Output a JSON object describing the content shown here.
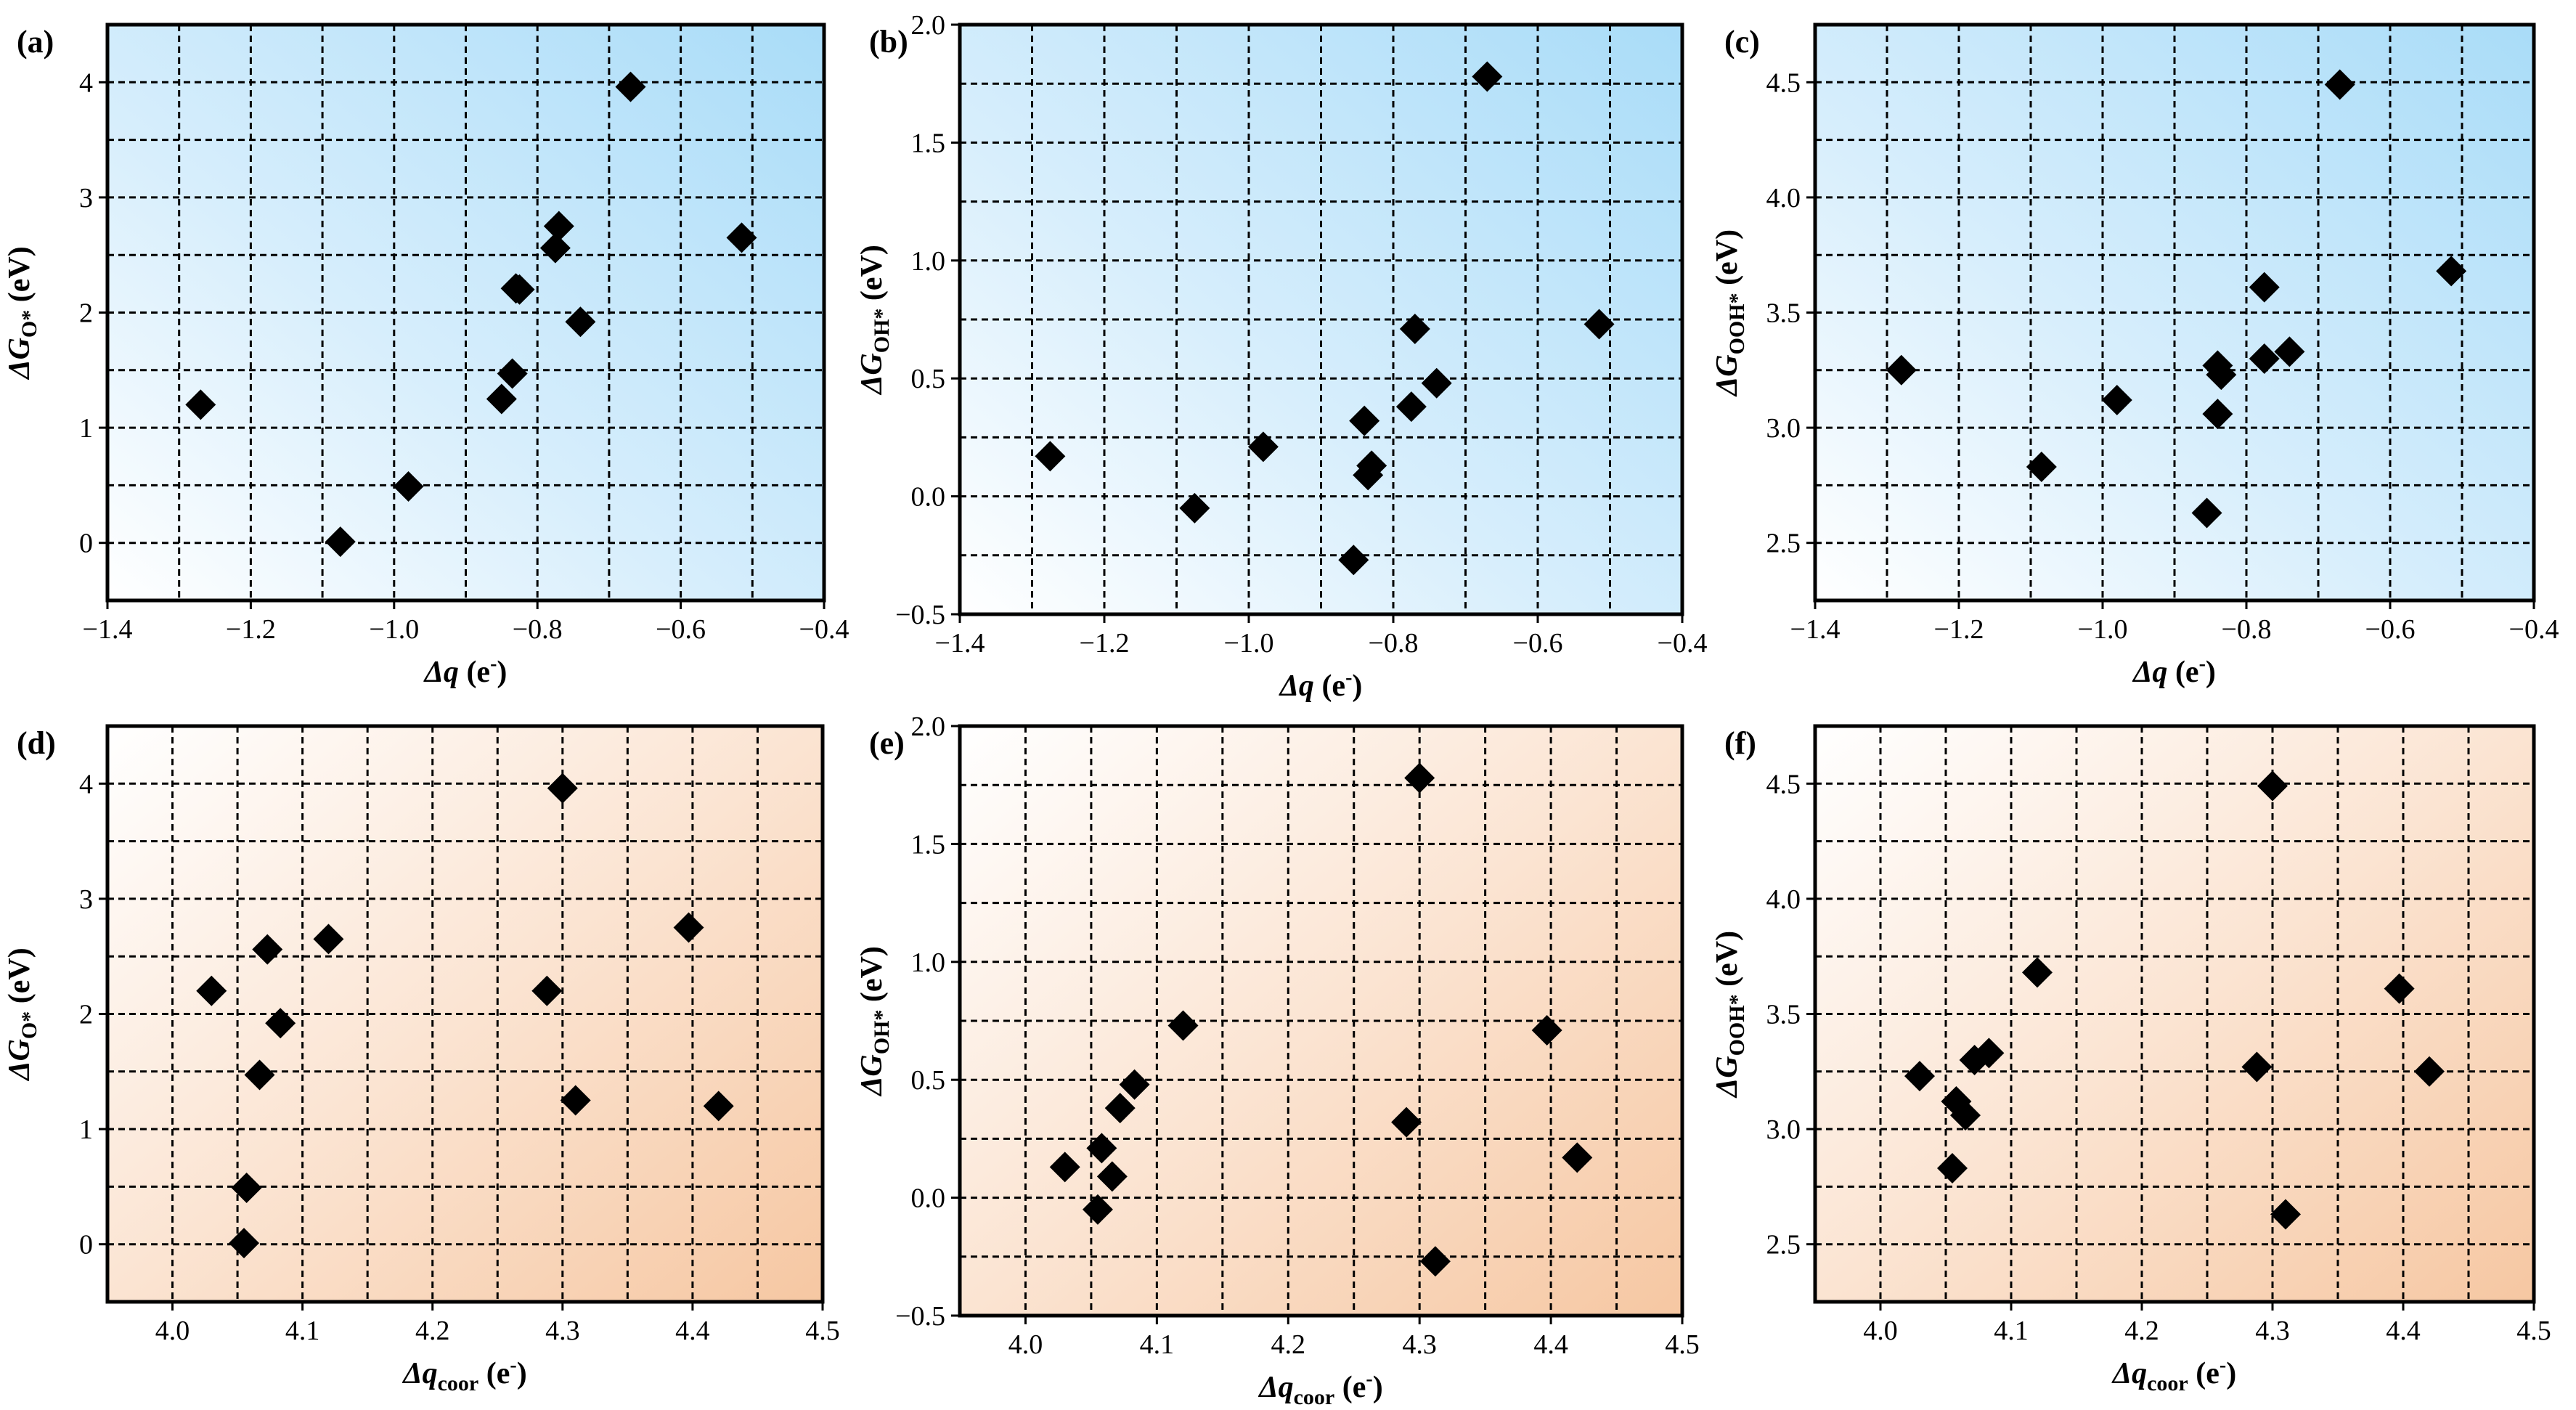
{
  "figure": {
    "marker": "diamond",
    "colors": {
      "blue_gradient": [
        "#ffffff",
        "#a9dcf8"
      ],
      "orange_gradient": [
        "#ffffff",
        "#f6c9a6"
      ],
      "marker": "#000000",
      "grid": "#000000"
    }
  },
  "chart_data": [
    {
      "panel": "(a)",
      "type": "scatter",
      "background": "blue",
      "xlabel_main": "Δq",
      "xlabel_sub": "",
      "xlabel_unit": " (e",
      "ylabel_main": "ΔG",
      "ylabel_sub": "O*",
      "ylabel_unit": " (eV)",
      "xlim": [
        -1.4,
        -0.4
      ],
      "ylim": [
        -0.5,
        4.5
      ],
      "xticks": [
        -1.4,
        -1.2,
        -1.0,
        -0.8,
        -0.6,
        -0.4
      ],
      "xtick_labels": [
        "−1.4",
        "−1.2",
        "−1.0",
        "−0.8",
        "−0.6",
        "−0.4"
      ],
      "yticks": [
        0,
        1,
        2,
        3,
        4
      ],
      "ytick_labels": [
        "0",
        "1",
        "2",
        "3",
        "4"
      ],
      "xgrid": [
        -1.3,
        -1.2,
        -1.1,
        -1.0,
        -0.9,
        -0.8,
        -0.7,
        -0.6,
        -0.5
      ],
      "ygrid": [
        0,
        0.5,
        1,
        1.5,
        2,
        2.5,
        3,
        3.5,
        4
      ],
      "x": [
        -1.27,
        -1.075,
        -0.98,
        -0.85,
        -0.835,
        -0.83,
        -0.825,
        -0.775,
        -0.77,
        -0.74,
        -0.67,
        -0.515
      ],
      "y": [
        1.2,
        0.01,
        0.49,
        1.25,
        1.47,
        2.21,
        2.2,
        2.56,
        2.75,
        1.92,
        3.96,
        2.65
      ]
    },
    {
      "panel": "(b)",
      "type": "scatter",
      "background": "blue",
      "xlabel_main": "Δq",
      "xlabel_sub": "",
      "xlabel_unit": " (e",
      "ylabel_main": "ΔG",
      "ylabel_sub": "OH*",
      "ylabel_unit": " (eV)",
      "xlim": [
        -1.4,
        -0.4
      ],
      "ylim": [
        -0.5,
        2.0
      ],
      "xticks": [
        -1.4,
        -1.2,
        -1.0,
        -0.8,
        -0.6,
        -0.4
      ],
      "xtick_labels": [
        "−1.4",
        "−1.2",
        "−1.0",
        "−0.8",
        "−0.6",
        "−0.4"
      ],
      "yticks": [
        -0.5,
        0.0,
        0.5,
        1.0,
        1.5,
        2.0
      ],
      "ytick_labels": [
        "−0.5",
        "0.0",
        "0.5",
        "1.0",
        "1.5",
        "2.0"
      ],
      "xgrid": [
        -1.3,
        -1.2,
        -1.1,
        -1.0,
        -0.9,
        -0.8,
        -0.7,
        -0.6,
        -0.5
      ],
      "ygrid": [
        -0.25,
        0,
        0.25,
        0.5,
        0.75,
        1.0,
        1.25,
        1.5,
        1.75
      ],
      "x": [
        -1.275,
        -1.075,
        -0.98,
        -0.855,
        -0.84,
        -0.835,
        -0.83,
        -0.775,
        -0.77,
        -0.74,
        -0.67,
        -0.515
      ],
      "y": [
        0.17,
        -0.05,
        0.21,
        -0.27,
        0.32,
        0.09,
        0.13,
        0.38,
        0.71,
        0.48,
        1.78,
        0.73
      ]
    },
    {
      "panel": "(c)",
      "type": "scatter",
      "background": "blue",
      "xlabel_main": "Δq",
      "xlabel_sub": "",
      "xlabel_unit": " (e",
      "ylabel_main": "ΔG",
      "ylabel_sub": "OOH*",
      "ylabel_unit": " (eV)",
      "xlim": [
        -1.4,
        -0.4
      ],
      "ylim": [
        2.25,
        4.75
      ],
      "xticks": [
        -1.4,
        -1.2,
        -1.0,
        -0.8,
        -0.6,
        -0.4
      ],
      "xtick_labels": [
        "−1.4",
        "−1.2",
        "−1.0",
        "−0.8",
        "−0.6",
        "−0.4"
      ],
      "yticks": [
        2.5,
        3.0,
        3.5,
        4.0,
        4.5
      ],
      "ytick_labels": [
        "2.5",
        "3.0",
        "3.5",
        "4.0",
        "4.5"
      ],
      "xgrid": [
        -1.3,
        -1.2,
        -1.1,
        -1.0,
        -0.9,
        -0.8,
        -0.7,
        -0.6,
        -0.5
      ],
      "ygrid": [
        2.5,
        2.75,
        3.0,
        3.25,
        3.5,
        3.75,
        4.0,
        4.25,
        4.5
      ],
      "x": [
        -1.28,
        -1.085,
        -0.98,
        -0.855,
        -0.84,
        -0.84,
        -0.835,
        -0.775,
        -0.775,
        -0.74,
        -0.67,
        -0.515
      ],
      "y": [
        3.25,
        2.83,
        3.12,
        2.63,
        3.06,
        3.27,
        3.23,
        3.3,
        3.61,
        3.33,
        4.49,
        3.68
      ]
    },
    {
      "panel": "(d)",
      "type": "scatter",
      "background": "orange",
      "xlabel_main": "Δq",
      "xlabel_sub": "coor",
      "xlabel_unit": " (e",
      "ylabel_main": "ΔG",
      "ylabel_sub": "O*",
      "ylabel_unit": " (eV)",
      "xlim": [
        3.95,
        4.5
      ],
      "ylim": [
        -0.5,
        4.5
      ],
      "xticks": [
        4.0,
        4.1,
        4.2,
        4.3,
        4.4,
        4.5
      ],
      "xtick_labels": [
        "4.0",
        "4.1",
        "4.2",
        "4.3",
        "4.4",
        "4.5"
      ],
      "yticks": [
        0,
        1,
        2,
        3,
        4
      ],
      "ytick_labels": [
        "0",
        "1",
        "2",
        "3",
        "4"
      ],
      "xgrid": [
        4.0,
        4.05,
        4.1,
        4.15,
        4.2,
        4.25,
        4.3,
        4.35,
        4.4,
        4.45
      ],
      "ygrid": [
        0,
        0.5,
        1,
        1.5,
        2,
        2.5,
        3,
        3.5,
        4
      ],
      "x": [
        4.03,
        4.055,
        4.057,
        4.067,
        4.073,
        4.083,
        4.12,
        4.288,
        4.3,
        4.31,
        4.397,
        4.42
      ],
      "y": [
        2.2,
        0.01,
        0.49,
        1.47,
        2.56,
        1.92,
        2.65,
        2.2,
        3.96,
        1.25,
        2.75,
        1.2
      ]
    },
    {
      "panel": "(e)",
      "type": "scatter",
      "background": "orange",
      "xlabel_main": "Δq",
      "xlabel_sub": "coor",
      "xlabel_unit": " (e",
      "ylabel_main": "ΔG",
      "ylabel_sub": "OH*",
      "ylabel_unit": " (eV)",
      "xlim": [
        3.95,
        4.5
      ],
      "ylim": [
        -0.5,
        2.0
      ],
      "xticks": [
        4.0,
        4.1,
        4.2,
        4.3,
        4.4,
        4.5
      ],
      "xtick_labels": [
        "4.0",
        "4.1",
        "4.2",
        "4.3",
        "4.4",
        "4.5"
      ],
      "yticks": [
        -0.5,
        0.0,
        0.5,
        1.0,
        1.5,
        2.0
      ],
      "ytick_labels": [
        "−0.5",
        "0.0",
        "0.5",
        "1.0",
        "1.5",
        "2.0"
      ],
      "xgrid": [
        4.0,
        4.05,
        4.1,
        4.15,
        4.2,
        4.25,
        4.3,
        4.35,
        4.4,
        4.45
      ],
      "ygrid": [
        -0.25,
        0,
        0.25,
        0.5,
        0.75,
        1.0,
        1.25,
        1.5,
        1.75
      ],
      "x": [
        4.03,
        4.055,
        4.058,
        4.066,
        4.072,
        4.083,
        4.12,
        4.29,
        4.3,
        4.312,
        4.397,
        4.42
      ],
      "y": [
        0.13,
        -0.05,
        0.21,
        0.09,
        0.38,
        0.48,
        0.73,
        0.32,
        1.78,
        -0.27,
        0.71,
        0.17
      ]
    },
    {
      "panel": "(f)",
      "type": "scatter",
      "background": "orange",
      "xlabel_main": "Δq",
      "xlabel_sub": "coor",
      "xlabel_unit": " (e",
      "ylabel_main": "ΔG",
      "ylabel_sub": "OOH*",
      "ylabel_unit": " (eV)",
      "xlim": [
        3.95,
        4.5
      ],
      "ylim": [
        2.25,
        4.75
      ],
      "xticks": [
        4.0,
        4.1,
        4.2,
        4.3,
        4.4,
        4.5
      ],
      "xtick_labels": [
        "4.0",
        "4.1",
        "4.2",
        "4.3",
        "4.4",
        "4.5"
      ],
      "yticks": [
        2.5,
        3.0,
        3.5,
        4.0,
        4.5
      ],
      "ytick_labels": [
        "2.5",
        "3.0",
        "3.5",
        "4.0",
        "4.5"
      ],
      "xgrid": [
        4.0,
        4.05,
        4.1,
        4.15,
        4.2,
        4.25,
        4.3,
        4.35,
        4.4,
        4.45
      ],
      "ygrid": [
        2.5,
        2.75,
        3.0,
        3.25,
        3.5,
        3.75,
        4.0,
        4.25,
        4.5
      ],
      "x": [
        4.03,
        4.055,
        4.058,
        4.065,
        4.072,
        4.083,
        4.12,
        4.288,
        4.3,
        4.31,
        4.397,
        4.42
      ],
      "y": [
        3.23,
        2.83,
        3.12,
        3.06,
        3.3,
        3.33,
        3.68,
        3.27,
        4.49,
        2.63,
        3.61,
        3.25
      ]
    }
  ]
}
